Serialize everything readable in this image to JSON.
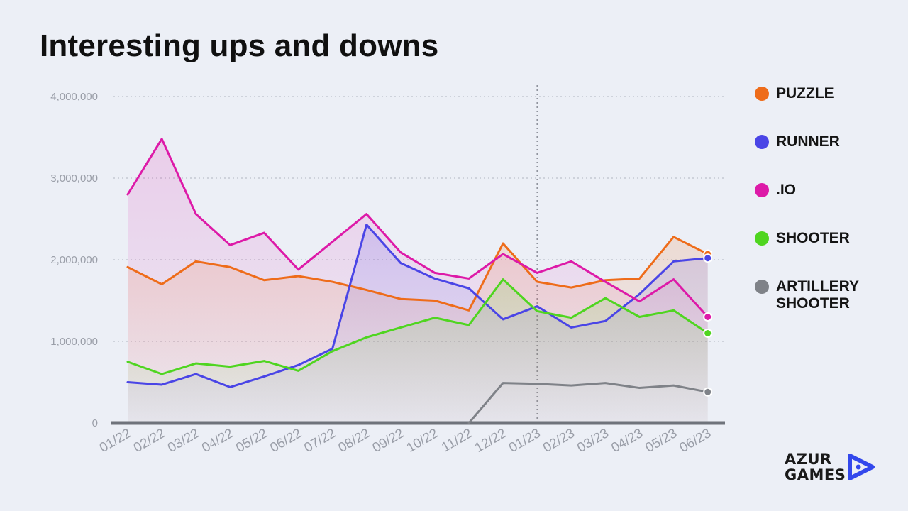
{
  "title": "Interesting ups and downs",
  "brand": {
    "name": "AZUR\nGAMES",
    "icon": "play-arrow-logo-icon",
    "color": "#3348ec"
  },
  "legend": [
    {
      "label": "PUZZLE",
      "color": "#ee6c1a"
    },
    {
      "label": "RUNNER",
      "color": "#4a45e6"
    },
    {
      "label": ".IO",
      "color": "#dd1aa8"
    },
    {
      "label": "SHOOTER",
      "color": "#4fd520"
    },
    {
      "label": "ARTILLERY\nSHOOTER",
      "color": "#7f8288"
    }
  ],
  "chart_data": {
    "type": "line",
    "title": "Interesting ups and downs",
    "categories": [
      "01/22",
      "02/22",
      "03/22",
      "04/22",
      "05/22",
      "06/22",
      "07/22",
      "08/22",
      "09/22",
      "10/22",
      "11/22",
      "12/22",
      "01/23",
      "02/23",
      "03/23",
      "04/23",
      "05/23",
      "06/23"
    ],
    "y_ticks": [
      "0",
      "1,000,000",
      "2,000,000",
      "3,000,000",
      "4,000,000"
    ],
    "ylim": [
      0,
      4000000
    ],
    "grid": true,
    "divider_at": "01/23",
    "legend_position": "right",
    "series": [
      {
        "name": "PUZZLE",
        "color": "#ee6c1a",
        "values": [
          1910000,
          1700000,
          1980000,
          1910000,
          1750000,
          1800000,
          1730000,
          1630000,
          1520000,
          1500000,
          1380000,
          2200000,
          1730000,
          1660000,
          1750000,
          1770000,
          2280000,
          2070000
        ]
      },
      {
        "name": "RUNNER",
        "color": "#4a45e6",
        "values": [
          500000,
          470000,
          600000,
          440000,
          570000,
          710000,
          910000,
          2430000,
          1960000,
          1770000,
          1650000,
          1270000,
          1430000,
          1170000,
          1250000,
          1580000,
          1980000,
          2020000
        ]
      },
      {
        "name": ".IO",
        "color": "#dd1aa8",
        "values": [
          2800000,
          3480000,
          2560000,
          2180000,
          2330000,
          1880000,
          2220000,
          2560000,
          2090000,
          1840000,
          1770000,
          2070000,
          1840000,
          1980000,
          1730000,
          1490000,
          1760000,
          1300000
        ]
      },
      {
        "name": "SHOOTER",
        "color": "#4fd520",
        "values": [
          750000,
          600000,
          730000,
          690000,
          760000,
          640000,
          880000,
          1050000,
          1170000,
          1290000,
          1200000,
          1760000,
          1370000,
          1290000,
          1530000,
          1300000,
          1380000,
          1100000
        ]
      },
      {
        "name": "ARTILLERY\nSHOOTER",
        "color": "#7f8288",
        "values": [
          null,
          null,
          null,
          null,
          null,
          null,
          null,
          null,
          null,
          null,
          0,
          490000,
          480000,
          460000,
          490000,
          430000,
          460000,
          380000
        ]
      }
    ]
  }
}
